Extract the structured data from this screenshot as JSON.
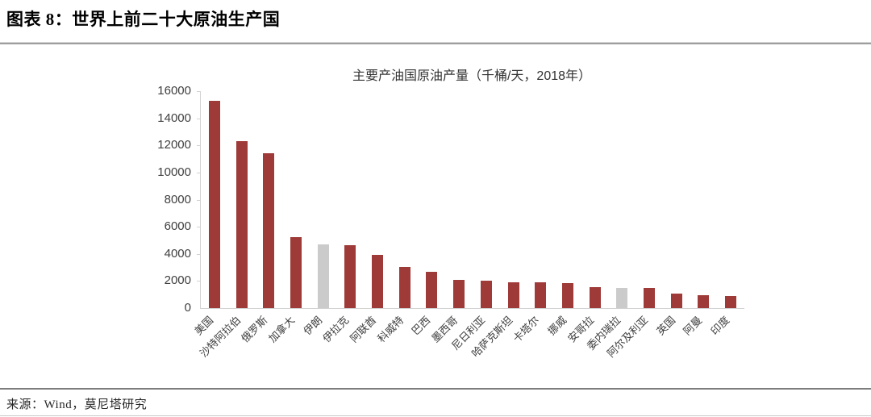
{
  "header": {
    "title": "图表 8：世界上前二十大原油生产国"
  },
  "footer": {
    "source": "来源：Wind，莫尼塔研究"
  },
  "chart_data": {
    "type": "bar",
    "title": "主要产油国原油产量（千桶/天，2018年）",
    "categories": [
      "美国",
      "沙特阿拉伯",
      "俄罗斯",
      "加拿大",
      "伊朗",
      "伊拉克",
      "阿联酋",
      "科威特",
      "巴西",
      "墨西哥",
      "尼日利亚",
      "哈萨克斯坦",
      "卡塔尔",
      "挪威",
      "安哥拉",
      "委内瑞拉",
      "阿尔及利亚",
      "英国",
      "阿曼",
      "印度"
    ],
    "values": [
      15311,
      12287,
      11438,
      5208,
      4715,
      4614,
      3942,
      3049,
      2683,
      2068,
      2051,
      1927,
      1879,
      1844,
      1534,
      1514,
      1510,
      1085,
      978,
      869
    ],
    "highlighted_categories": [
      "伊朗",
      "委内瑞拉"
    ],
    "yticks": [
      0,
      2000,
      4000,
      6000,
      8000,
      10000,
      12000,
      14000,
      16000
    ],
    "ylim": [
      0,
      16000
    ],
    "xlabel": "",
    "ylabel": "",
    "grid": false,
    "legend": "none",
    "bar_color": "#9e3a38",
    "highlight_bar_color": "#cbcbcb",
    "axis_color": "#d2d2d2"
  }
}
